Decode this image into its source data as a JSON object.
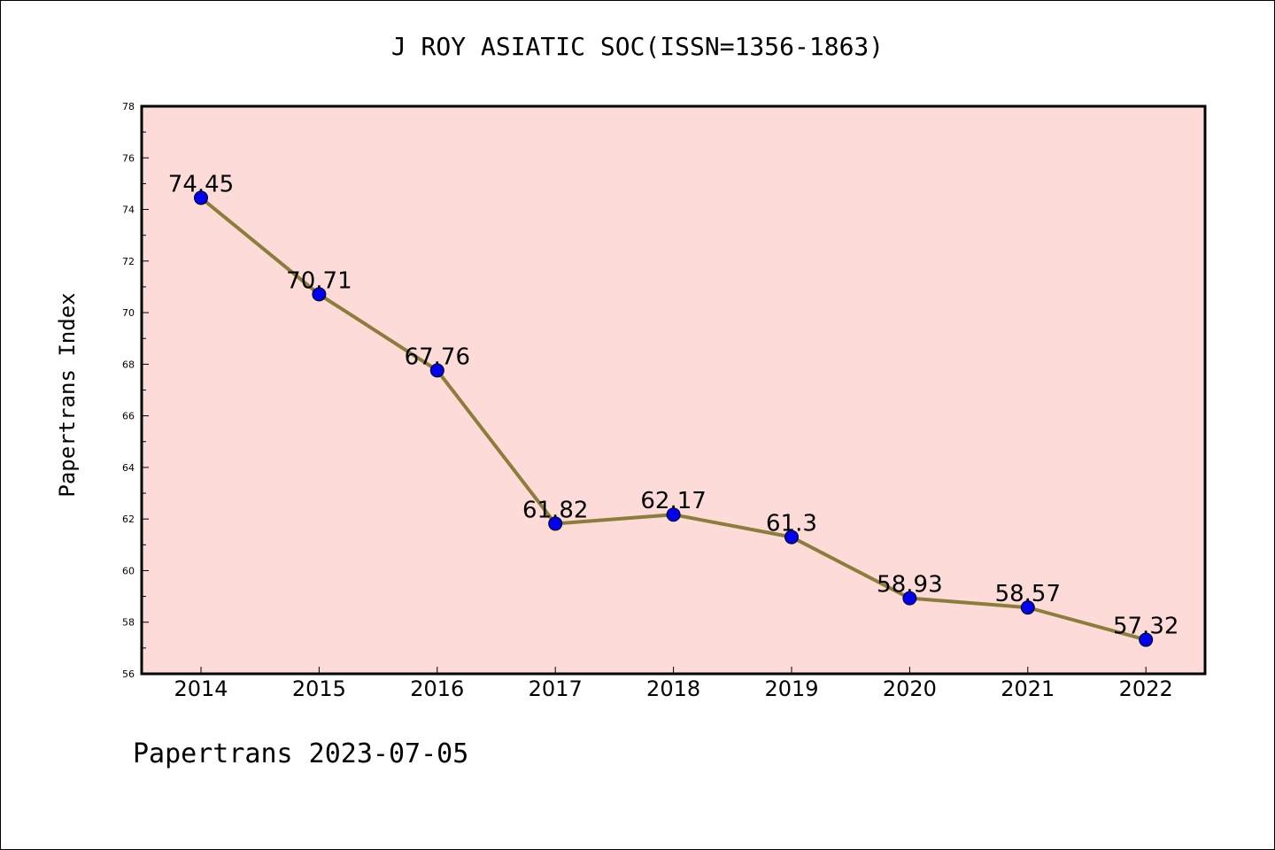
{
  "chart_data": {
    "type": "line",
    "title": "J ROY ASIATIC SOC(ISSN=1356-1863)",
    "xlabel": "",
    "ylabel": "Papertrans Index",
    "categories": [
      "2014",
      "2015",
      "2016",
      "2017",
      "2018",
      "2019",
      "2020",
      "2021",
      "2022"
    ],
    "series": [
      {
        "values": [
          74.45,
          70.71,
          67.76,
          61.82,
          62.17,
          61.3,
          58.93,
          58.57,
          57.32
        ],
        "data_labels": [
          "74.45",
          "70.71",
          "67.76",
          "61.82",
          "62.17",
          "61.3",
          "58.93",
          "58.57",
          "57.32"
        ]
      }
    ],
    "ylim": [
      56,
      78
    ],
    "yticks": [
      56,
      58,
      60,
      62,
      64,
      66,
      68,
      70,
      72,
      74,
      76,
      78
    ],
    "grid": false,
    "colors": {
      "plot_background": "#fddbd8",
      "line": "#8b7d3a",
      "marker": "#0000ee"
    }
  },
  "footer": {
    "text": "Papertrans 2023-07-05"
  }
}
